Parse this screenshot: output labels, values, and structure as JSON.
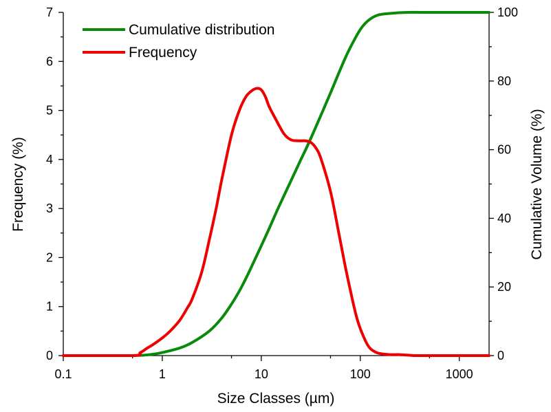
{
  "chart_data": {
    "type": "line",
    "xlabel": "Size Classes (µm)",
    "ylabel_left": "Frequency (%)",
    "ylabel_right": "Cumulative Volume (%)",
    "x_scale": "log",
    "xlim": [
      0.1,
      2000
    ],
    "ylim_left": [
      0,
      7
    ],
    "ylim_right": [
      0,
      100
    ],
    "x_ticks": [
      0.1,
      1,
      10,
      100,
      1000
    ],
    "x_tick_labels": [
      "0.1",
      "1",
      "10",
      "100",
      "1000"
    ],
    "y_left_ticks": [
      0,
      1,
      2,
      3,
      4,
      5,
      6,
      7
    ],
    "y_left_tick_labels": [
      "0",
      "1",
      "2",
      "3",
      "4",
      "5",
      "6",
      "7"
    ],
    "y_right_ticks": [
      0,
      20,
      40,
      60,
      80,
      100
    ],
    "y_right_tick_labels": [
      "0",
      "20",
      "40",
      "60",
      "80",
      "100"
    ],
    "grid": false,
    "legend_position": "top-left",
    "series": [
      {
        "name": "Cumulative distribution",
        "axis": "right",
        "color": "#0a8a0a",
        "x": [
          0.1,
          0.5,
          0.8,
          1.0,
          1.5,
          2.0,
          3.0,
          4.0,
          5.0,
          6.0,
          7.0,
          8.0,
          10,
          12,
          15,
          20,
          25,
          30,
          40,
          50,
          60,
          70,
          80,
          100,
          120,
          150,
          200,
          300,
          500,
          1000,
          2000
        ],
        "values": [
          0,
          0,
          0.4,
          0.9,
          2.2,
          3.8,
          7.2,
          11,
          15,
          18.8,
          22.5,
          26,
          32,
          37,
          43.3,
          51,
          57,
          61.8,
          70,
          76.5,
          82,
          86.5,
          90,
          95,
          97.6,
          99.2,
          99.7,
          100,
          100,
          100,
          100
        ]
      },
      {
        "name": "Frequency",
        "axis": "left",
        "color": "#ee0000",
        "x": [
          0.1,
          0.5,
          0.6,
          0.7,
          0.8,
          1.0,
          1.2,
          1.5,
          1.8,
          2.0,
          2.5,
          3.0,
          3.5,
          4.0,
          5.0,
          6.0,
          7.0,
          8.0,
          9.0,
          10,
          11,
          12,
          14,
          17,
          20,
          24,
          28,
          32,
          36,
          40,
          50,
          60,
          70,
          80,
          90,
          100,
          120,
          140,
          160,
          200,
          250,
          300,
          350,
          400,
          500,
          1000,
          2000
        ],
        "values": [
          0,
          0,
          0.06,
          0.15,
          0.22,
          0.36,
          0.5,
          0.72,
          0.98,
          1.15,
          1.7,
          2.38,
          3.0,
          3.6,
          4.5,
          5.0,
          5.28,
          5.4,
          5.45,
          5.42,
          5.28,
          5.08,
          4.82,
          4.52,
          4.4,
          4.38,
          4.38,
          4.34,
          4.22,
          4.02,
          3.35,
          2.55,
          1.85,
          1.3,
          0.85,
          0.55,
          0.2,
          0.08,
          0.04,
          0.02,
          0.02,
          0.01,
          0.0,
          0,
          0,
          0,
          0
        ]
      }
    ]
  }
}
